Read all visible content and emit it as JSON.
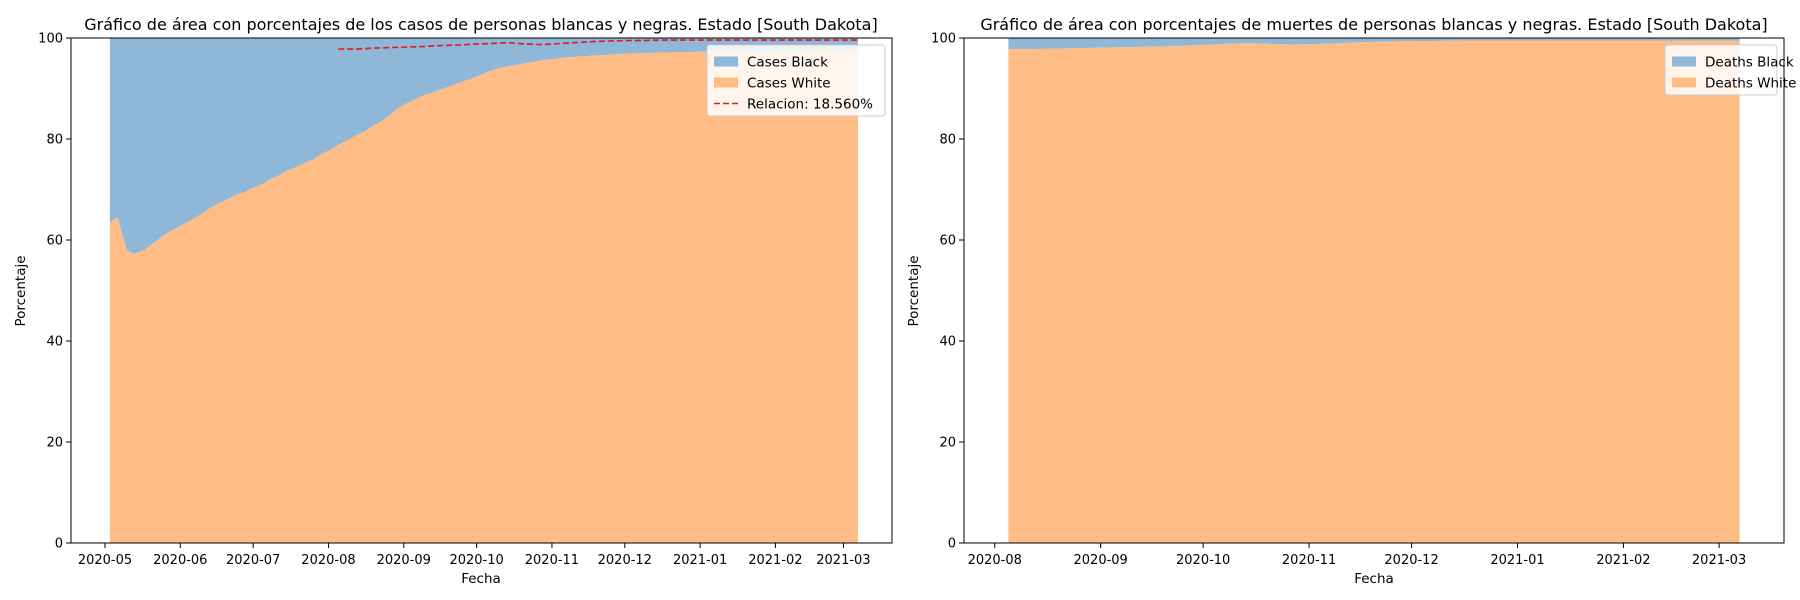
{
  "colors": {
    "black_area": "#8fb8d8",
    "white_area": "#ffbd85",
    "ratio_line": "#e8161b",
    "axis": "#000000",
    "legend_border": "#cccccc"
  },
  "chart_data": [
    {
      "type": "area",
      "stacked": true,
      "percent_stacked": true,
      "title": "Gráfico de área con porcentajes de los casos de personas blancas y negras. Estado [South Dakota]",
      "xlabel": "Fecha",
      "ylabel": "Porcentaje",
      "ylim": [
        0,
        100
      ],
      "xlim": [
        "2020-04-17",
        "2021-03-21"
      ],
      "yticks": [
        0,
        20,
        40,
        60,
        80,
        100
      ],
      "xticks": [
        "2020-05-01",
        "2020-06-01",
        "2020-07-01",
        "2020-08-01",
        "2020-09-01",
        "2020-10-01",
        "2020-11-01",
        "2020-12-01",
        "2021-01-01",
        "2021-02-01",
        "2021-03-01"
      ],
      "xtick_labels": [
        "2020-05",
        "2020-06",
        "2020-07",
        "2020-08",
        "2020-09",
        "2020-10",
        "2020-11",
        "2020-12",
        "2021-01",
        "2021-02",
        "2021-03"
      ],
      "grid": false,
      "legend_position": "upper right",
      "x": [
        "2020-05-03",
        "2020-05-06",
        "2020-05-10",
        "2020-05-13",
        "2020-05-17",
        "2020-05-20",
        "2020-05-24",
        "2020-05-27",
        "2020-05-31",
        "2020-06-03",
        "2020-06-07",
        "2020-06-10",
        "2020-06-14",
        "2020-06-17",
        "2020-06-21",
        "2020-06-24",
        "2020-06-28",
        "2020-07-01",
        "2020-07-05",
        "2020-07-08",
        "2020-07-12",
        "2020-07-15",
        "2020-07-19",
        "2020-07-22",
        "2020-07-26",
        "2020-07-29",
        "2020-08-02",
        "2020-08-05",
        "2020-08-09",
        "2020-08-12",
        "2020-08-16",
        "2020-08-19",
        "2020-08-23",
        "2020-08-26",
        "2020-08-30",
        "2020-09-02",
        "2020-09-06",
        "2020-09-09",
        "2020-09-13",
        "2020-09-16",
        "2020-09-20",
        "2020-09-23",
        "2020-09-27",
        "2020-09-30",
        "2020-10-04",
        "2020-10-07",
        "2020-10-11",
        "2020-10-14",
        "2020-10-18",
        "2020-10-21",
        "2020-10-25",
        "2020-10-28",
        "2020-11-01",
        "2020-11-04",
        "2020-11-08",
        "2020-11-11",
        "2020-11-15",
        "2020-11-18",
        "2020-11-22",
        "2020-11-25",
        "2020-11-29",
        "2020-12-02",
        "2020-12-06",
        "2020-12-09",
        "2020-12-13",
        "2020-12-16",
        "2020-12-20",
        "2020-12-23",
        "2020-12-27",
        "2020-12-30",
        "2021-01-03",
        "2021-01-06",
        "2021-01-10",
        "2021-01-13",
        "2021-01-17",
        "2021-01-20",
        "2021-01-24",
        "2021-01-27",
        "2021-01-31",
        "2021-02-03",
        "2021-02-07",
        "2021-02-10",
        "2021-02-14",
        "2021-02-17",
        "2021-02-21",
        "2021-02-24",
        "2021-02-28",
        "2021-03-03",
        "2021-03-07"
      ],
      "series": [
        {
          "name": "Cases White",
          "color_key": "white_area",
          "values": [
            63.5,
            64.5,
            58,
            57.2,
            58,
            59,
            60.5,
            61.5,
            62.5,
            63.3,
            64.3,
            65.3,
            66.5,
            67.3,
            68.2,
            68.9,
            69.6,
            70.3,
            71.1,
            72.0,
            72.9,
            73.7,
            74.5,
            75.2,
            76.0,
            77.0,
            77.9,
            78.8,
            79.8,
            80.6,
            81.5,
            82.5,
            83.6,
            84.6,
            86.2,
            87.0,
            87.9,
            88.6,
            89.2,
            89.8,
            90.4,
            91.0,
            91.6,
            92.2,
            92.9,
            93.6,
            94.1,
            94.4,
            94.7,
            95.0,
            95.3,
            95.6,
            95.8,
            96.0,
            96.2,
            96.3,
            96.4,
            96.5,
            96.6,
            96.7,
            96.8,
            96.9,
            96.95,
            97.0,
            97.05,
            97.1,
            97.15,
            97.2,
            97.22,
            97.25,
            97.27,
            97.3,
            97.32,
            97.34,
            97.36,
            97.38,
            97.4,
            97.42,
            97.44,
            97.46,
            97.48,
            97.5,
            97.52,
            97.54,
            97.56,
            97.58,
            97.6,
            97.62,
            97.64
          ]
        },
        {
          "name": "Cases Black",
          "color_key": "black_area",
          "values": [
            36.5,
            35.5,
            42,
            42.8,
            42,
            41,
            39.5,
            38.5,
            37.5,
            36.7,
            35.7,
            34.7,
            33.5,
            32.7,
            31.8,
            31.1,
            30.4,
            29.7,
            28.9,
            28.0,
            27.1,
            26.3,
            25.5,
            24.8,
            24.0,
            23.0,
            22.1,
            21.2,
            20.2,
            19.4,
            18.5,
            17.5,
            16.4,
            15.4,
            13.8,
            13.0,
            12.1,
            11.4,
            10.8,
            10.2,
            9.6,
            9.0,
            8.4,
            7.8,
            7.1,
            6.4,
            5.9,
            5.6,
            5.3,
            5.0,
            4.7,
            4.4,
            4.2,
            4.0,
            3.8,
            3.7,
            3.6,
            3.5,
            3.4,
            3.3,
            3.2,
            3.1,
            3.05,
            3.0,
            2.95,
            2.9,
            2.85,
            2.8,
            2.78,
            2.75,
            2.73,
            2.7,
            2.68,
            2.66,
            2.64,
            2.62,
            2.6,
            2.58,
            2.56,
            2.54,
            2.52,
            2.5,
            2.48,
            2.46,
            2.44,
            2.42,
            2.4,
            2.38,
            2.36
          ]
        }
      ],
      "ratio_line": {
        "name": "Relacion: 18.560%",
        "color_key": "ratio_line",
        "style": "dashed",
        "x": [
          "2020-08-05",
          "2020-08-12",
          "2020-08-19",
          "2020-08-26",
          "2020-09-02",
          "2020-09-09",
          "2020-09-16",
          "2020-09-23",
          "2020-09-30",
          "2020-10-07",
          "2020-10-14",
          "2020-10-21",
          "2020-10-28",
          "2020-11-04",
          "2020-11-11",
          "2020-11-18",
          "2020-11-25",
          "2020-12-02",
          "2020-12-09",
          "2020-12-16",
          "2020-12-23",
          "2020-12-30",
          "2021-01-06",
          "2021-01-13",
          "2021-01-20",
          "2021-01-27",
          "2021-02-03",
          "2021-02-10",
          "2021-02-17",
          "2021-02-24",
          "2021-03-03",
          "2021-03-07"
        ],
        "values": [
          97.8,
          97.8,
          98.0,
          98.1,
          98.2,
          98.3,
          98.5,
          98.6,
          98.8,
          98.9,
          99.1,
          98.8,
          98.7,
          98.9,
          99.1,
          99.3,
          99.4,
          99.5,
          99.5,
          99.6,
          99.6,
          99.6,
          99.6,
          99.6,
          99.6,
          99.6,
          99.6,
          99.6,
          99.6,
          99.6,
          99.6,
          99.6
        ]
      }
    },
    {
      "type": "area",
      "stacked": true,
      "percent_stacked": true,
      "title": "Gráfico de área con porcentajes de muertes de personas blancas y negras. Estado [South Dakota]",
      "xlabel": "Fecha",
      "ylabel": "Porcentaje",
      "ylim": [
        0,
        100
      ],
      "xlim": [
        "2020-07-23",
        "2021-03-20"
      ],
      "yticks": [
        0,
        20,
        40,
        60,
        80,
        100
      ],
      "xticks": [
        "2020-08-01",
        "2020-09-01",
        "2020-10-01",
        "2020-11-01",
        "2020-12-01",
        "2021-01-01",
        "2021-02-01",
        "2021-03-01"
      ],
      "xtick_labels": [
        "2020-08",
        "2020-09",
        "2020-10",
        "2020-11",
        "2020-12",
        "2021-01",
        "2021-02",
        "2021-03"
      ],
      "grid": false,
      "legend_position": "upper right",
      "x": [
        "2020-08-05",
        "2020-08-12",
        "2020-08-19",
        "2020-08-26",
        "2020-09-02",
        "2020-09-09",
        "2020-09-16",
        "2020-09-23",
        "2020-09-30",
        "2020-10-07",
        "2020-10-14",
        "2020-10-21",
        "2020-10-28",
        "2020-11-04",
        "2020-11-11",
        "2020-11-18",
        "2020-11-25",
        "2020-12-02",
        "2020-12-09",
        "2020-12-16",
        "2020-12-23",
        "2020-12-30",
        "2021-01-06",
        "2021-01-13",
        "2021-01-20",
        "2021-01-27",
        "2021-02-03",
        "2021-02-10",
        "2021-02-17",
        "2021-02-24",
        "2021-03-03",
        "2021-03-07"
      ],
      "series": [
        {
          "name": "Deaths White",
          "color_key": "white_area",
          "values": [
            97.8,
            97.8,
            97.9,
            98.0,
            98.1,
            98.2,
            98.3,
            98.4,
            98.6,
            98.8,
            99.0,
            98.8,
            98.7,
            98.8,
            99.0,
            99.2,
            99.3,
            99.4,
            99.4,
            99.5,
            99.5,
            99.5,
            99.5,
            99.5,
            99.5,
            99.5,
            99.5,
            99.5,
            99.5,
            99.5,
            99.5,
            99.5
          ]
        },
        {
          "name": "Deaths Black",
          "color_key": "black_area",
          "values": [
            2.2,
            2.2,
            2.1,
            2.0,
            1.9,
            1.8,
            1.7,
            1.6,
            1.4,
            1.2,
            1.0,
            1.2,
            1.3,
            1.2,
            1.0,
            0.8,
            0.7,
            0.6,
            0.6,
            0.5,
            0.5,
            0.5,
            0.5,
            0.5,
            0.5,
            0.5,
            0.5,
            0.5,
            0.5,
            0.5,
            0.5,
            0.5
          ]
        }
      ]
    }
  ]
}
